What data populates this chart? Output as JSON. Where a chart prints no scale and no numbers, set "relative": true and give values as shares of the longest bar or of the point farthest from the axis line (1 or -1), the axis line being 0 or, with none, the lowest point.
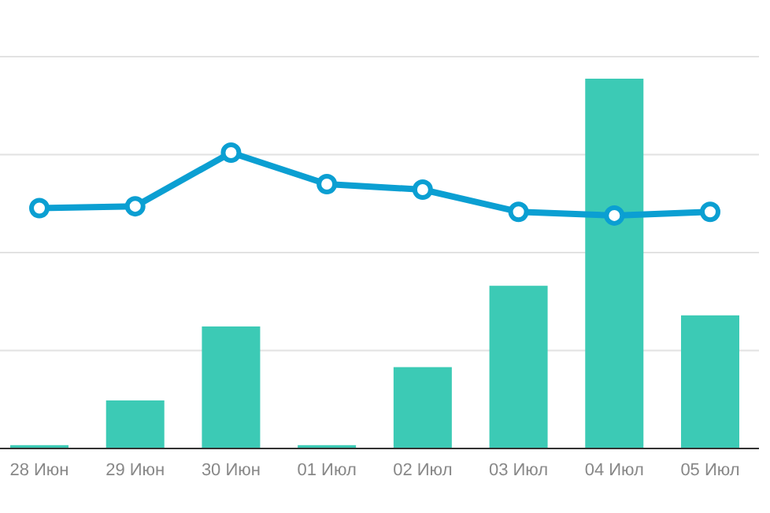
{
  "chart_data": {
    "type": "bar",
    "relative": true,
    "grid": "y",
    "categories": [
      "28 Июн",
      "29 Июн",
      "30 Июн",
      "01 Июл",
      "02 Июл",
      "03 Июл",
      "04 Июл",
      "05 Июл"
    ],
    "series": [
      {
        "color": "#3ccab5",
        "values": [
          0.009,
          0.13,
          0.33,
          0.009,
          0.22,
          0.44,
          1,
          0.36
        ]
      },
      {
        "type": "line",
        "color": "#0b9fd2",
        "marker": "circle",
        "line_style": "solid",
        "values": [
          0.65,
          0.655,
          0.8,
          0.715,
          0.7,
          0.64,
          0.63,
          0.64
        ]
      }
    ]
  }
}
